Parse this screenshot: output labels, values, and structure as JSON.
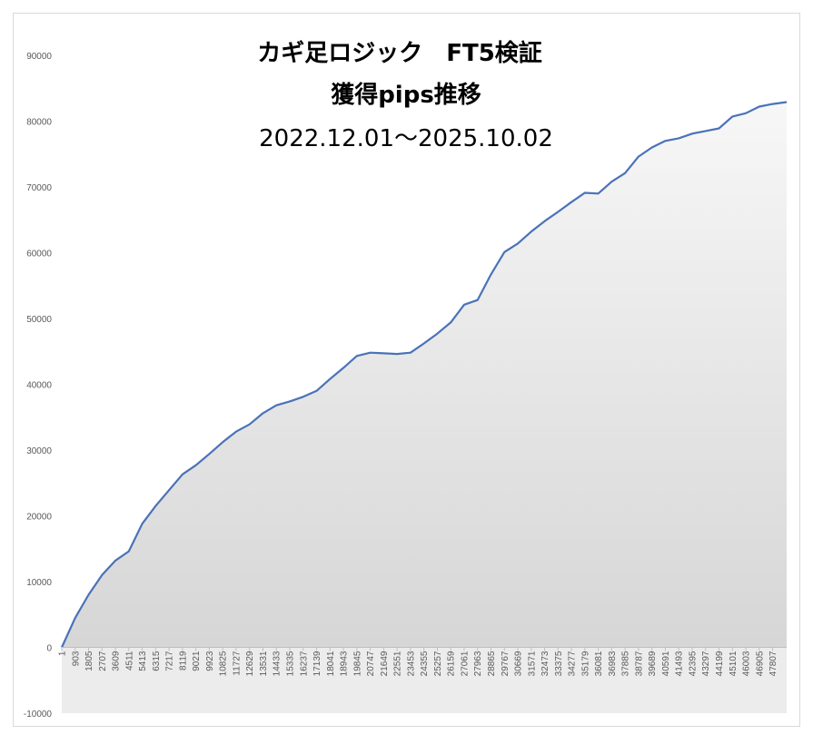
{
  "chart_data": {
    "type": "area",
    "title": [
      "カギ足ロジック　FT5検証",
      "獲得pips推移",
      "2022.12.01～2025.10.02"
    ],
    "x": [
      1,
      903,
      1805,
      2707,
      3609,
      4511,
      5413,
      6315,
      7217,
      8119,
      9021,
      9923,
      10825,
      11727,
      12629,
      13531,
      14433,
      15335,
      16237,
      17139,
      18041,
      18943,
      19845,
      20747,
      21649,
      22551,
      23453,
      24355,
      25257,
      26159,
      27061,
      27963,
      28865,
      29767,
      30669,
      31571,
      32473,
      33375,
      34277,
      35179,
      36081,
      36983,
      37885,
      38787,
      39689,
      40591,
      41493,
      42395,
      43297,
      44199,
      45101,
      46003,
      46905,
      47807,
      48750
    ],
    "values": [
      0,
      4500,
      8000,
      11000,
      13200,
      14600,
      18800,
      21500,
      23900,
      26300,
      27700,
      29400,
      31200,
      32800,
      33900,
      35600,
      36800,
      37400,
      38100,
      39000,
      40800,
      42500,
      44300,
      44800,
      44700,
      44600,
      44800,
      46200,
      47700,
      49400,
      52100,
      52800,
      56700,
      60100,
      61400,
      63200,
      64800,
      66200,
      67700,
      69100,
      69000,
      70800,
      72100,
      74600,
      76000,
      77000,
      77400,
      78100,
      78500,
      78900,
      80700,
      81200,
      82200,
      82600,
      82900
    ],
    "color": "#4a72b8",
    "xlim": [
      1,
      48750
    ],
    "xticks": [
      1,
      903,
      1805,
      2707,
      3609,
      4511,
      5413,
      6315,
      7217,
      8119,
      9021,
      9923,
      10825,
      11727,
      12629,
      13531,
      14433,
      15335,
      16237,
      17139,
      18041,
      18943,
      19845,
      20747,
      21649,
      22551,
      23453,
      24355,
      25257,
      26159,
      27061,
      27963,
      28865,
      29767,
      30669,
      31571,
      32473,
      33375,
      34277,
      35179,
      36081,
      36983,
      37885,
      38787,
      39689,
      40591,
      41493,
      42395,
      43297,
      44199,
      45101,
      46003,
      46905,
      47807
    ],
    "ylim": [
      -10000,
      90000
    ],
    "yticks": [
      -10000,
      0,
      10000,
      20000,
      30000,
      40000,
      50000,
      60000,
      70000,
      80000,
      90000
    ]
  }
}
